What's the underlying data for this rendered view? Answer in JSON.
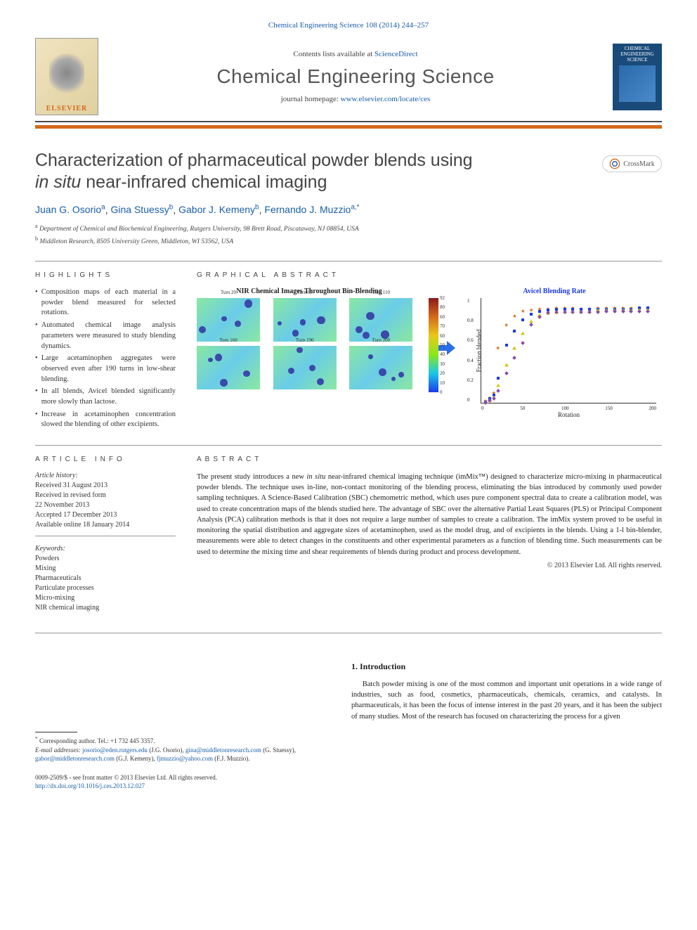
{
  "top_link": "Chemical Engineering Science 108 (2014) 244–257",
  "contents_line_prefix": "Contents lists available at ",
  "contents_line_link": "ScienceDirect",
  "journal_title": "Chemical Engineering Science",
  "journal_homepage_prefix": "journal homepage: ",
  "journal_homepage_link": "www.elsevier.com/locate/ces",
  "elsevier_label": "ELSEVIER",
  "cover_text": "CHEMICAL ENGINEERING SCIENCE",
  "article_title_line1": "Characterization of pharmaceutical powder blends using",
  "article_title_line2_italic": "in situ",
  "article_title_line2_rest": " near-infrared chemical imaging",
  "crossmark_label": "CrossMark",
  "authors": [
    {
      "name": "Juan G. Osorio",
      "sup": "a"
    },
    {
      "name": "Gina Stuessy",
      "sup": "b"
    },
    {
      "name": "Gabor J. Kemeny",
      "sup": "b"
    },
    {
      "name": "Fernando J. Muzzio",
      "sup": "a,*"
    }
  ],
  "affiliations": [
    {
      "sup": "a",
      "text": "Department of Chemical and Biochemical Engineering, Rutgers University, 98 Brett Road, Piscataway, NJ 08854, USA"
    },
    {
      "sup": "b",
      "text": "Middleton Research, 8505 University Green, Middleton, WI 53562, USA"
    }
  ],
  "highlights_label": "HIGHLIGHTS",
  "highlights": [
    "Composition maps of each material in a powder blend measured for selected rotations.",
    "Automated chemical image analysis parameters were measured to study blending dynamics.",
    "Large acetaminophen aggregates were observed even after 190 turns in low-shear blending.",
    "In all blends, Avicel blended significantly more slowly than lactose.",
    "Increase in acetaminophen concentration slowed the blending of other excipients."
  ],
  "ga_label": "GRAPHICAL ABSTRACT",
  "ga": {
    "left_title": "NIR Chemical Images Throughout Bin-Blending",
    "tile_labels": [
      "Turn 20",
      "Turn 60",
      "Turn 110",
      "Turn 160",
      "Turn 190",
      "Turn 200"
    ],
    "tile_bg_gradient": [
      "#8ae8a0",
      "#6acce8",
      "#8ae8a0"
    ],
    "colorbar_gradient": [
      "#8b1a1a",
      "#d46a1a",
      "#e8c81a",
      "#8ae81a",
      "#1ac8e8",
      "#1a3ae8"
    ],
    "colorbar_ticks": [
      "92",
      "80",
      "60",
      "70",
      "60",
      "50",
      "40",
      "30",
      "20",
      "10",
      "0"
    ],
    "arrow_color": "#2a6ee8",
    "right_title": "Avicel Blending Rate",
    "right_title_color": "#1a3ae8",
    "ylabel": "Fraction blended",
    "xlabel": "Rotation",
    "xlim": [
      0,
      210
    ],
    "ylim": [
      0,
      1.05
    ],
    "yticks": [
      "0",
      "0.2",
      "0.4",
      "0.6",
      "0.8",
      "1"
    ],
    "xticks": [
      "0",
      "50",
      "100",
      "150",
      "200"
    ],
    "series": [
      {
        "marker": "star",
        "color": "#d46a1a",
        "points": [
          [
            5,
            0.02
          ],
          [
            10,
            0.05
          ],
          [
            15,
            0.1
          ],
          [
            20,
            0.55
          ],
          [
            30,
            0.78
          ],
          [
            40,
            0.87
          ],
          [
            50,
            0.92
          ],
          [
            60,
            0.93
          ],
          [
            70,
            0.94
          ],
          [
            80,
            0.94
          ],
          [
            90,
            0.95
          ],
          [
            100,
            0.95
          ],
          [
            110,
            0.95
          ],
          [
            120,
            0.94
          ],
          [
            130,
            0.94
          ],
          [
            140,
            0.95
          ],
          [
            150,
            0.95
          ],
          [
            160,
            0.95
          ],
          [
            170,
            0.95
          ],
          [
            180,
            0.95
          ],
          [
            190,
            0.95
          ],
          [
            200,
            0.95
          ]
        ]
      },
      {
        "marker": "square",
        "color": "#1a3ae8",
        "points": [
          [
            5,
            0.01
          ],
          [
            10,
            0.04
          ],
          [
            15,
            0.08
          ],
          [
            20,
            0.25
          ],
          [
            30,
            0.58
          ],
          [
            40,
            0.72
          ],
          [
            50,
            0.83
          ],
          [
            60,
            0.89
          ],
          [
            70,
            0.92
          ],
          [
            80,
            0.93
          ],
          [
            90,
            0.94
          ],
          [
            100,
            0.94
          ],
          [
            110,
            0.94
          ],
          [
            120,
            0.94
          ],
          [
            130,
            0.94
          ],
          [
            140,
            0.94
          ],
          [
            150,
            0.94
          ],
          [
            160,
            0.94
          ],
          [
            170,
            0.94
          ],
          [
            180,
            0.94
          ],
          [
            190,
            0.95
          ],
          [
            200,
            0.95
          ]
        ]
      },
      {
        "marker": "triangle",
        "color": "#d4c81a",
        "points": [
          [
            5,
            0.01
          ],
          [
            10,
            0.03
          ],
          [
            15,
            0.06
          ],
          [
            20,
            0.18
          ],
          [
            30,
            0.38
          ],
          [
            40,
            0.55
          ],
          [
            50,
            0.7
          ],
          [
            60,
            0.82
          ],
          [
            70,
            0.88
          ],
          [
            80,
            0.9
          ],
          [
            90,
            0.91
          ],
          [
            100,
            0.92
          ],
          [
            110,
            0.92
          ],
          [
            120,
            0.92
          ],
          [
            130,
            0.92
          ],
          [
            140,
            0.93
          ],
          [
            150,
            0.93
          ],
          [
            160,
            0.93
          ],
          [
            170,
            0.93
          ],
          [
            180,
            0.93
          ],
          [
            190,
            0.93
          ],
          [
            200,
            0.93
          ]
        ]
      },
      {
        "marker": "diamond",
        "color": "#8a4aaa",
        "points": [
          [
            5,
            0.0
          ],
          [
            10,
            0.02
          ],
          [
            15,
            0.04
          ],
          [
            20,
            0.12
          ],
          [
            30,
            0.3
          ],
          [
            40,
            0.45
          ],
          [
            50,
            0.6
          ],
          [
            60,
            0.78
          ],
          [
            70,
            0.86
          ],
          [
            80,
            0.9
          ],
          [
            90,
            0.91
          ],
          [
            100,
            0.91
          ],
          [
            110,
            0.91
          ],
          [
            120,
            0.91
          ],
          [
            130,
            0.91
          ],
          [
            140,
            0.91
          ],
          [
            150,
            0.92
          ],
          [
            160,
            0.92
          ],
          [
            170,
            0.92
          ],
          [
            180,
            0.92
          ],
          [
            190,
            0.92
          ],
          [
            200,
            0.92
          ]
        ]
      }
    ]
  },
  "article_info_label": "ARTICLE INFO",
  "history_label": "Article history:",
  "history": [
    "Received 31 August 2013",
    "Received in revised form",
    "22 November 2013",
    "Accepted 17 December 2013",
    "Available online 18 January 2014"
  ],
  "keywords_label": "Keywords:",
  "keywords": [
    "Powders",
    "Mixing",
    "Pharmaceuticals",
    "Particulate processes",
    "Micro-mixing",
    "NIR chemical imaging"
  ],
  "abstract_label": "ABSTRACT",
  "abstract_text": "The present study introduces a new in situ near-infrared chemical imaging technique (imMix™) designed to characterize micro-mixing in pharmaceutical powder blends. The technique uses in-line, non-contact monitoring of the blending process, eliminating the bias introduced by commonly used powder sampling techniques. A Science-Based Calibration (SBC) chemometric method, which uses pure component spectral data to create a calibration model, was used to create concentration maps of the blends studied here. The advantage of SBC over the alternative Partial Least Squares (PLS) or Principal Component Analysis (PCA) calibration methods is that it does not require a large number of samples to create a calibration. The imMix system proved to be useful in monitoring the spatial distribution and aggregate sizes of acetaminophen, used as the model drug, and of excipients in the blends. Using a 1-l bin-blender, measurements were able to detect changes in the constituents and other experimental parameters as a function of blending time. Such measurements can be used to determine the mixing time and shear requirements of blends during product and process development.",
  "copyright": "© 2013 Elsevier Ltd. All rights reserved.",
  "intro_heading": "1.  Introduction",
  "intro_text": "Batch powder mixing is one of the most common and important unit operations in a wide range of industries, such as food, cosmetics, pharmaceuticals, chemicals, ceramics, and catalysts. In pharmaceuticals, it has been the focus of intense interest in the past 20 years, and it has been the subject of many studies. Most of the research has focused on characterizing the process for a given",
  "corresponding_note": "Corresponding author. Tel.: +1 732 445 3357.",
  "email_label": "E-mail addresses:",
  "emails": [
    {
      "addr": "josorio@eden.rutgers.edu",
      "who": "(J.G. Osorio)"
    },
    {
      "addr": "gina@middletonresearch.com",
      "who": "(G. Stuessy)"
    },
    {
      "addr": "gabor@middletonresearch.com",
      "who": "(G.J. Kemeny)"
    },
    {
      "addr": "fjmuzzio@yahoo.com",
      "who": "(F.J. Muzzio)"
    }
  ],
  "issn_line": "0009-2509/$ - see front matter © 2013 Elsevier Ltd. All rights reserved.",
  "doi_link": "http://dx.doi.org/10.1016/j.ces.2013.12.027"
}
